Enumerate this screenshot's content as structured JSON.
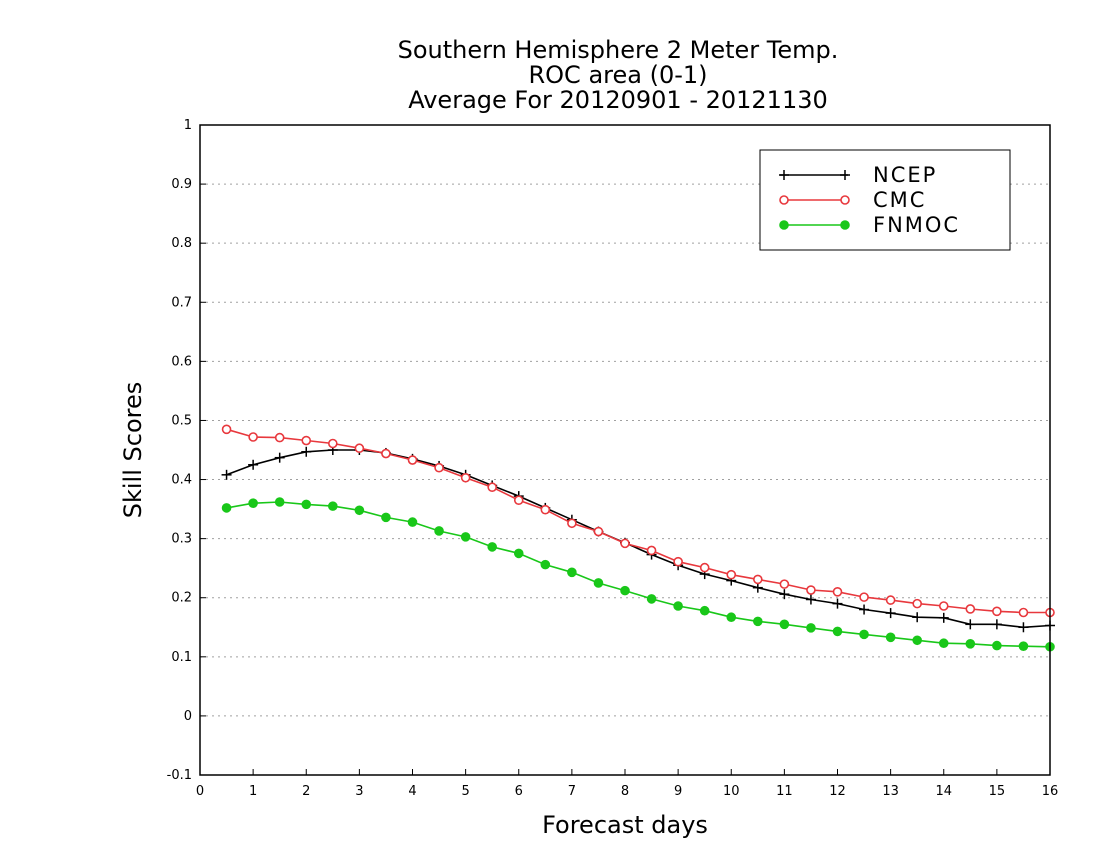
{
  "chart_data": {
    "type": "line",
    "title": "Southern Hemisphere 2 Meter Temp.",
    "subtitle": "ROC area (0-1)",
    "period": "Average For 20120901 - 20121130",
    "xlabel": "Forecast days",
    "ylabel": "Skill Scores",
    "xlim": [
      0,
      16
    ],
    "ylim": [
      -0.1,
      1
    ],
    "xticks": [
      "0",
      "1",
      "2",
      "3",
      "4",
      "5",
      "6",
      "7",
      "8",
      "9",
      "10",
      "11",
      "12",
      "13",
      "14",
      "15",
      "16"
    ],
    "yticks": [
      "-0.1",
      "0",
      "0.1",
      "0.2",
      "0.3",
      "0.4",
      "0.5",
      "0.6",
      "0.7",
      "0.8",
      "0.9",
      "1"
    ],
    "grid": "horizontal dotted",
    "legend_position": "top-right",
    "x": [
      0.5,
      1,
      1.5,
      2,
      2.5,
      3,
      3.5,
      4,
      4.5,
      5,
      5.5,
      6,
      6.5,
      7,
      7.5,
      8,
      8.5,
      9,
      9.5,
      10,
      10.5,
      11,
      11.5,
      12,
      12.5,
      13,
      13.5,
      14,
      14.5,
      15,
      15.5,
      16
    ],
    "series": [
      {
        "name": "NCEP",
        "color": "#000000",
        "marker": "plus",
        "values": [
          0.408,
          0.425,
          0.437,
          0.447,
          0.45,
          0.45,
          0.445,
          0.435,
          0.423,
          0.408,
          0.39,
          0.372,
          0.352,
          0.332,
          0.312,
          0.293,
          0.273,
          0.255,
          0.24,
          0.229,
          0.217,
          0.206,
          0.197,
          0.19,
          0.18,
          0.174,
          0.167,
          0.166,
          0.155,
          0.155,
          0.15,
          0.153
        ]
      },
      {
        "name": "CMC",
        "color": "#e8383d",
        "marker": "open-circle",
        "values": [
          0.485,
          0.472,
          0.471,
          0.466,
          0.461,
          0.453,
          0.444,
          0.433,
          0.42,
          0.403,
          0.387,
          0.365,
          0.349,
          0.326,
          0.312,
          0.292,
          0.28,
          0.261,
          0.251,
          0.239,
          0.231,
          0.223,
          0.213,
          0.21,
          0.201,
          0.196,
          0.19,
          0.186,
          0.181,
          0.177,
          0.175,
          0.175
        ]
      },
      {
        "name": "FNMOC",
        "color": "#19c719",
        "marker": "filled-circle",
        "values": [
          0.352,
          0.36,
          0.362,
          0.358,
          0.355,
          0.348,
          0.336,
          0.328,
          0.313,
          0.303,
          0.286,
          0.275,
          0.256,
          0.243,
          0.225,
          0.212,
          0.198,
          0.186,
          0.178,
          0.167,
          0.16,
          0.155,
          0.149,
          0.143,
          0.138,
          0.133,
          0.128,
          0.123,
          0.122,
          0.119,
          0.118,
          0.117
        ]
      }
    ]
  }
}
